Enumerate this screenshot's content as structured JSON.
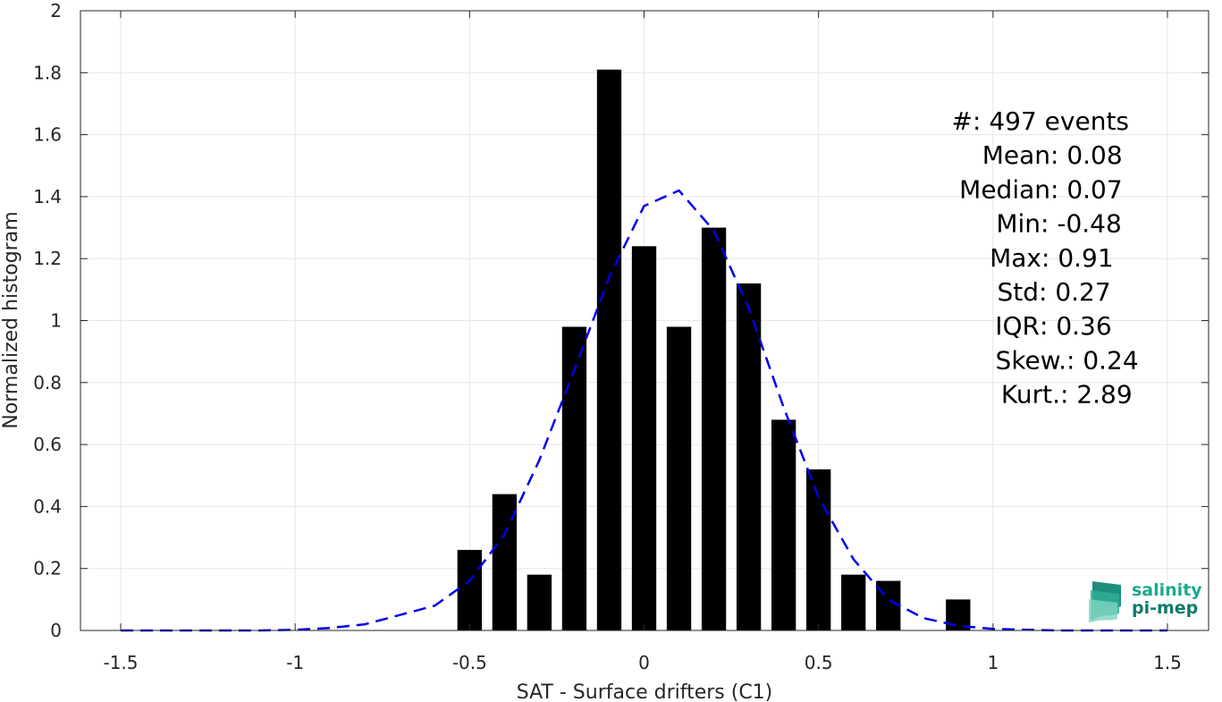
{
  "chart_data": {
    "type": "bar",
    "xlabel": "SAT - Surface drifters (C1)",
    "ylabel": "Normalized histogram",
    "xlim": [
      -1.5,
      1.5
    ],
    "ylim": [
      0,
      2
    ],
    "xticks": [
      -1.5,
      -1,
      -0.5,
      0,
      0.5,
      1,
      1.5
    ],
    "xtick_labels": [
      "-1.5",
      "-1",
      "-0.5",
      "0",
      "0.5",
      "1",
      "1.5"
    ],
    "yticks": [
      0,
      0.2,
      0.4,
      0.6,
      0.8,
      1,
      1.2,
      1.4,
      1.6,
      1.8,
      2
    ],
    "ytick_labels": [
      "0",
      "0.2",
      "0.4",
      "0.6",
      "0.8",
      "1",
      "1.2",
      "1.4",
      "1.6",
      "1.8",
      "2"
    ],
    "grid": true,
    "bar_width": 0.07,
    "bars": {
      "x": [
        -0.5,
        -0.4,
        -0.3,
        -0.2,
        -0.1,
        0.0,
        0.1,
        0.2,
        0.3,
        0.4,
        0.5,
        0.6,
        0.7,
        0.9
      ],
      "values": [
        0.26,
        0.44,
        0.18,
        0.98,
        1.81,
        1.24,
        0.98,
        1.3,
        1.12,
        0.68,
        0.52,
        0.18,
        0.16,
        0.1
      ],
      "color": "#000000"
    },
    "fit_curve": {
      "style": "dashed",
      "color": "#0000ee",
      "x": [
        -1.5,
        -1.4,
        -1.3,
        -1.2,
        -1.1,
        -1.0,
        -0.9,
        -0.8,
        -0.7,
        -0.6,
        -0.5,
        -0.4,
        -0.3,
        -0.2,
        -0.1,
        0.0,
        0.1,
        0.2,
        0.3,
        0.4,
        0.5,
        0.6,
        0.7,
        0.8,
        0.9,
        1.0,
        1.1,
        1.2,
        1.3,
        1.4,
        1.5
      ],
      "y": [
        0,
        0,
        0,
        0,
        0,
        0.002,
        0.008,
        0.02,
        0.05,
        0.08,
        0.16,
        0.31,
        0.55,
        0.84,
        1.14,
        1.37,
        1.42,
        1.29,
        1.04,
        0.72,
        0.43,
        0.23,
        0.1,
        0.04,
        0.015,
        0.005,
        0.002,
        0,
        0,
        0,
        0
      ]
    },
    "stats": [
      {
        "label": "#  ",
        "value": ": 497 events"
      },
      {
        "label": "Mean ",
        "value": ": 0.08"
      },
      {
        "label": "Median ",
        "value": ": 0.07"
      },
      {
        "label": "Min ",
        "value": ": -0.48"
      },
      {
        "label": "Max ",
        "value": ": 0.91"
      },
      {
        "label": "Std ",
        "value": ": 0.27"
      },
      {
        "label": "IQR ",
        "value": ": 0.36"
      },
      {
        "label": "Skew. ",
        "value": ": 0.24"
      },
      {
        "label": "Kurt. ",
        "value": ": 2.89"
      }
    ]
  },
  "logo": {
    "line1": "salinity",
    "line2": "pi-mep",
    "color1": "#1aa98f",
    "color2": "#127a6a"
  }
}
